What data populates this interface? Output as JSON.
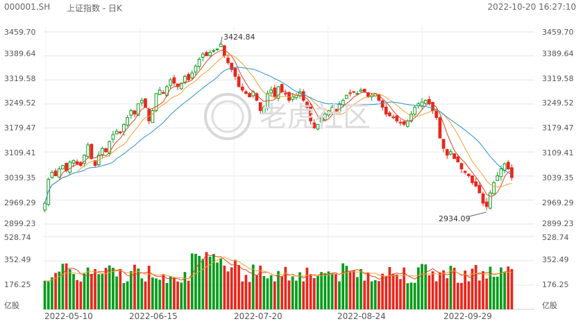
{
  "header": {
    "code": "000001.SH",
    "name": "上证指数 - 日K",
    "datetime": "2022-10-20 16:27:10"
  },
  "watermark": "老虎社区",
  "colors": {
    "up": "#0a9b1c",
    "down": "#e8271c",
    "ma_short": "#e0401e",
    "ma_mid": "#f0a030",
    "ma_long": "#2a8fd0",
    "grid": "#e6e6e6"
  },
  "price_axis": {
    "labels": [
      "3459.70",
      "3389.64",
      "3319.58",
      "3249.52",
      "3179.47",
      "3109.41",
      "3039.35",
      "2969.29",
      "2899.23"
    ],
    "range": [
      2899.23,
      3459.7
    ]
  },
  "volume_axis": {
    "labels": [
      "528.74",
      "352.49",
      "176.25",
      "亿股"
    ],
    "range": [
      0,
      528.74
    ]
  },
  "x_labels": [
    "2022-05-10",
    "2022-06-15",
    "2022-07-20",
    "2022-08-24",
    "2022-09-29"
  ],
  "annotations": {
    "high": "3424.84",
    "low": "2934.09"
  },
  "chart_data": {
    "type": "candlestick",
    "title": "上证指数 - 日K",
    "volume_unit": "亿股",
    "high_marker": 3424.84,
    "low_marker": 2934.09,
    "close_series": [
      2960,
      3030,
      3050,
      3040,
      3060,
      3070,
      3055,
      3080,
      3085,
      3075,
      3070,
      3100,
      3130,
      3090,
      3070,
      3100,
      3120,
      3110,
      3140,
      3160,
      3170,
      3165,
      3190,
      3210,
      3230,
      3220,
      3250,
      3260,
      3240,
      3200,
      3230,
      3280,
      3290,
      3280,
      3300,
      3320,
      3310,
      3300,
      3310,
      3330,
      3320,
      3340,
      3360,
      3380,
      3395,
      3390,
      3400,
      3405,
      3410,
      3424,
      3390,
      3370,
      3350,
      3330,
      3300,
      3290,
      3280,
      3270,
      3285,
      3260,
      3230,
      3240,
      3280,
      3290,
      3270,
      3300,
      3285,
      3280,
      3260,
      3270,
      3275,
      3285,
      3260,
      3240,
      3200,
      3180,
      3190,
      3210,
      3220,
      3230,
      3240,
      3230,
      3250,
      3260,
      3275,
      3280,
      3285,
      3280,
      3290,
      3285,
      3270,
      3275,
      3280,
      3260,
      3240,
      3220,
      3215,
      3210,
      3200,
      3195,
      3190,
      3200,
      3220,
      3240,
      3250,
      3255,
      3260,
      3250,
      3230,
      3210,
      3150,
      3120,
      3100,
      3110,
      3090,
      3080,
      3060,
      3050,
      3040,
      3020,
      3010,
      2990,
      2960,
      2950,
      2990,
      3020,
      3040,
      3060,
      3075,
      3060,
      3035
    ]
  }
}
